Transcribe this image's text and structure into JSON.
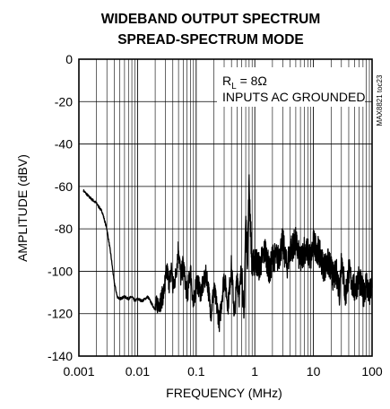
{
  "chart_data": {
    "type": "line",
    "title": "WIDEBAND OUTPUT SPECTRUM",
    "subtitle": "SPREAD-SPECTRUM MODE",
    "xlabel": "FREQUENCY (MHz)",
    "ylabel": "AMPLITUDE (dBV)",
    "x_scale": "log",
    "xlim": [
      0.001,
      100
    ],
    "ylim": [
      -140,
      0
    ],
    "x_ticks": [
      0.001,
      0.01,
      0.1,
      1,
      10,
      100
    ],
    "x_tick_labels": [
      "0.001",
      "0.01",
      "0.1",
      "1",
      "10",
      "100"
    ],
    "y_ticks": [
      0,
      -20,
      -40,
      -60,
      -80,
      -100,
      -120,
      -140
    ],
    "y_tick_labels": [
      "0",
      "-20",
      "-40",
      "-60",
      "-80",
      "-100",
      "-120",
      "-140"
    ],
    "grid": true,
    "annotation_line1_main": "R",
    "annotation_line1_sub": "L",
    "annotation_line1_rest": " = 8Ω",
    "annotation_line2": "INPUTS AC GROUNDED",
    "part_number": "MAX8821 toc23",
    "line_color": "#000000",
    "series": [
      {
        "x": [
          0.0012,
          0.0015,
          0.002,
          0.0025,
          0.003,
          0.0035,
          0.004,
          0.0045,
          0.005,
          0.006,
          0.007,
          0.008,
          0.009,
          0.01,
          0.012,
          0.015,
          0.018,
          0.02,
          0.022,
          0.025,
          0.028,
          0.03,
          0.032,
          0.035,
          0.038,
          0.04,
          0.045,
          0.05,
          0.055,
          0.06,
          0.07,
          0.08,
          0.09,
          0.1,
          0.12,
          0.15,
          0.18,
          0.2,
          0.25,
          0.3,
          0.35,
          0.4,
          0.45,
          0.5,
          0.55,
          0.6,
          0.65,
          0.7,
          0.75,
          0.8,
          0.9,
          1,
          1.2,
          1.5,
          1.8,
          2,
          2.5,
          3,
          3.5,
          4,
          5,
          6,
          7,
          8,
          9,
          10,
          12,
          15,
          18,
          20,
          22,
          25,
          28,
          30,
          35,
          40,
          50,
          60,
          70,
          80,
          90,
          100
        ],
        "y": [
          -62,
          -65,
          -68,
          -72,
          -80,
          -92,
          -105,
          -112,
          -113,
          -112,
          -113,
          -112,
          -114,
          -113,
          -114,
          -112,
          -116,
          -118,
          -115,
          -114,
          -110,
          -104,
          -100,
          -106,
          -98,
          -108,
          -102,
          -88,
          -104,
          -96,
          -112,
          -99,
          -118,
          -104,
          -110,
          -101,
          -120,
          -108,
          -124,
          -102,
          -116,
          -97,
          -122,
          -101,
          -112,
          -96,
          -126,
          -76,
          -94,
          -59,
          -99,
          -94,
          -98,
          -90,
          -101,
          -93,
          -94,
          -86,
          -98,
          -90,
          -86,
          -96,
          -89,
          -91,
          -94,
          -87,
          -90,
          -98,
          -96,
          -99,
          -103,
          -101,
          -110,
          -92,
          -112,
          -100,
          -109,
          -103,
          -111,
          -105,
          -112,
          -106
        ]
      }
    ]
  }
}
